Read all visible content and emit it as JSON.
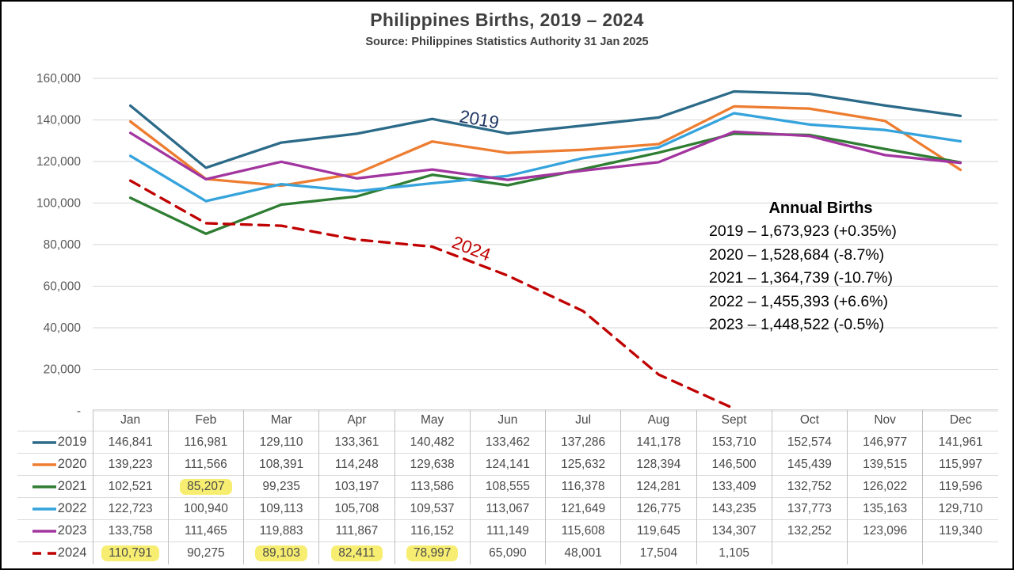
{
  "title": "Philippines Births, 2019 – 2024",
  "subtitle": "Source: Philippines Statistics Authority 31 Jan 2025",
  "annotation": {
    "title": "Annual Births",
    "lines": [
      "2019 – 1,673,923 (+0.35%)",
      "2020 – 1,528,684 (-8.7%)",
      "2021 – 1,364,739 (-10.7%)",
      "2022 – 1,455,393 (+6.6%)",
      "2023 – 1,448,522 (-0.5%)"
    ]
  },
  "chart_data": {
    "type": "line",
    "title": "Philippines Births, 2019 – 2024",
    "xlabel": "",
    "ylabel": "",
    "categories": [
      "Jan",
      "Feb",
      "Mar",
      "Apr",
      "May",
      "Jun",
      "Jul",
      "Aug",
      "Sept",
      "Oct",
      "Nov",
      "Dec"
    ],
    "series": [
      {
        "name": "2019",
        "color": "#2B6A88",
        "dashed": false,
        "values": [
          146841,
          116981,
          129110,
          133361,
          140482,
          133462,
          137286,
          141178,
          153710,
          152574,
          146977,
          141961
        ]
      },
      {
        "name": "2020",
        "color": "#ED7D31",
        "dashed": false,
        "values": [
          139223,
          111566,
          108391,
          114248,
          129638,
          124141,
          125632,
          128394,
          146500,
          145439,
          139515,
          115997
        ]
      },
      {
        "name": "2021",
        "color": "#2E7D32",
        "dashed": false,
        "values": [
          102521,
          85207,
          99235,
          103197,
          113586,
          108555,
          116378,
          124281,
          133409,
          132752,
          126022,
          119596
        ]
      },
      {
        "name": "2022",
        "color": "#35A3DC",
        "dashed": false,
        "values": [
          122723,
          100940,
          109113,
          105708,
          109537,
          113067,
          121649,
          126775,
          143235,
          137773,
          135163,
          129710
        ]
      },
      {
        "name": "2023",
        "color": "#A2359F",
        "dashed": false,
        "values": [
          133758,
          111465,
          119883,
          111867,
          116152,
          111149,
          115608,
          119645,
          134307,
          132252,
          123096,
          119340
        ]
      },
      {
        "name": "2024",
        "color": "#C00000",
        "dashed": true,
        "values": [
          110791,
          90275,
          89103,
          82411,
          78997,
          65090,
          48001,
          17504,
          1105,
          null,
          null,
          null
        ]
      }
    ],
    "ylim": [
      0,
      160000
    ],
    "ytick_values": [
      0,
      20000,
      40000,
      60000,
      80000,
      100000,
      120000,
      140000,
      160000
    ],
    "ytick_labels": [
      "-",
      "20,000",
      "40,000",
      "60,000",
      "80,000",
      "100,000",
      "120,000",
      "140,000",
      "160,000"
    ],
    "grid": true,
    "gridline_color": "#D6D6D6",
    "axis_label_color": "#595959",
    "legend_position": "table-left",
    "labels_on_chart": [
      {
        "text": "2019",
        "x": 577,
        "y": 152,
        "rotation": 10,
        "color": "#1F3864"
      },
      {
        "text": "2024",
        "x": 567,
        "y": 310,
        "rotation": 21,
        "color": "#C00000"
      }
    ]
  },
  "table": {
    "columns": [
      "Jan",
      "Feb",
      "Mar",
      "Apr",
      "May",
      "Jun",
      "Jul",
      "Aug",
      "Sept",
      "Oct",
      "Nov",
      "Dec"
    ],
    "highlight_color": "#F7EE71",
    "highlights": {
      "2021": [
        1
      ],
      "2024": [
        0,
        2,
        3,
        4
      ]
    }
  }
}
